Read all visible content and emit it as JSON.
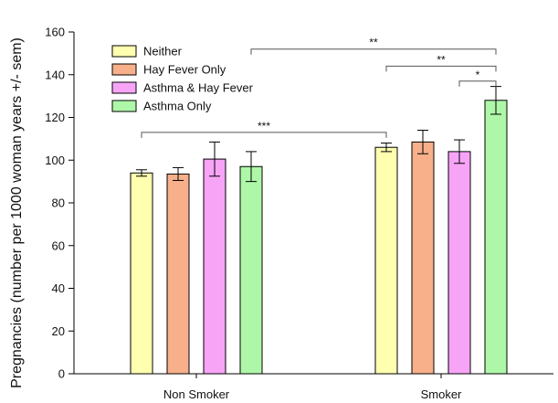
{
  "chart_data": {
    "type": "bar",
    "ylabel": "Pregnancies (number per 1000 woman years +/- sem)",
    "xlabel": "",
    "ylim": [
      0,
      160
    ],
    "yticks": [
      0,
      20,
      40,
      60,
      80,
      100,
      120,
      140,
      160
    ],
    "categories": [
      "Non Smoker",
      "Smoker"
    ],
    "series": [
      {
        "name": "Neither",
        "color": "#ffffb0",
        "values": [
          94,
          106
        ],
        "errors": [
          1.5,
          2
        ]
      },
      {
        "name": "Hay Fever Only",
        "color": "#f7b08a",
        "values": [
          93.5,
          108.5
        ],
        "errors": [
          3,
          5.5
        ]
      },
      {
        "name": "Asthma & Hay Fever",
        "color": "#f7a4f7",
        "values": [
          100.5,
          104
        ],
        "errors": [
          8,
          5.5
        ]
      },
      {
        "name": "Asthma Only",
        "color": "#aef7a8",
        "values": [
          97,
          128
        ],
        "errors": [
          7,
          6.5
        ]
      }
    ],
    "legend_position": "top-left",
    "grid": false,
    "significance": [
      {
        "label": "***",
        "from": {
          "category": 0,
          "series": 0
        },
        "to": {
          "category": 1,
          "series": 0
        },
        "height": 113
      },
      {
        "label": "**",
        "from": {
          "category": 0,
          "series": 3
        },
        "to": {
          "category": 1,
          "series": 3
        },
        "height": 152
      },
      {
        "label": "**",
        "from": {
          "category": 1,
          "series": 0
        },
        "to": {
          "category": 1,
          "series": 3
        },
        "height": 144
      },
      {
        "label": "*",
        "from": {
          "category": 1,
          "series": 2
        },
        "to": {
          "category": 1,
          "series": 3
        },
        "height": 137
      }
    ]
  }
}
